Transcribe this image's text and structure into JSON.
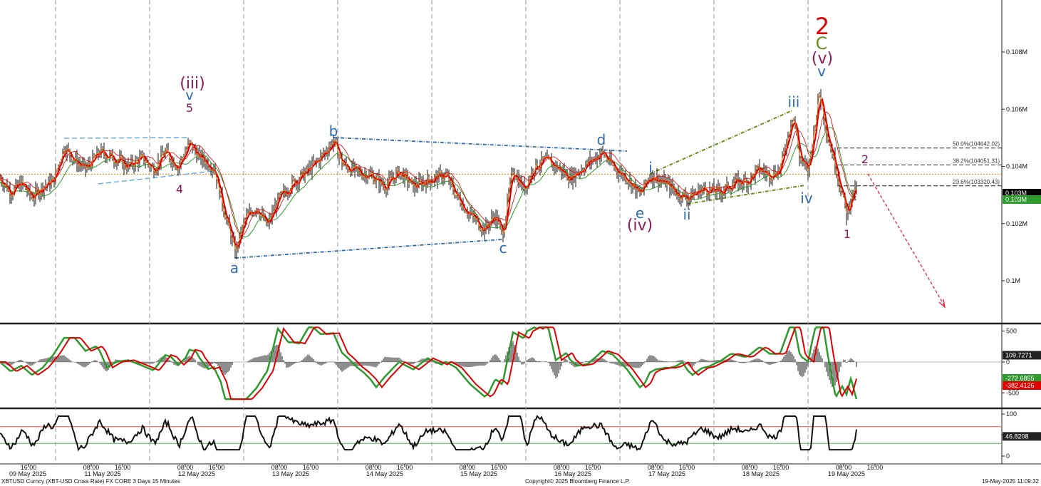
{
  "footer": {
    "left": "XBTUSD Curncy (XBT-USD Cross Rate) FX CORE 3 Days 15 Minutes",
    "center": "Copyright© 2025 Bloomberg Finance L.P.",
    "right": "19-May-2025 11:09:32"
  },
  "colors": {
    "price": "#111111",
    "ma_fast": "#e00000",
    "ma_slow_green": "#2e9a2e",
    "ma_orange": "#ff7a00",
    "blue_trend": "#2e6ab0",
    "green_trend": "#6a8f1a",
    "wave_purple": "#8a1a55",
    "wave_blue": "#2e6ab0",
    "red_arrow": "#e8203a"
  },
  "chart_data": [
    {
      "type": "line",
      "panel": "price",
      "ylim": [
        0.0991,
        0.1102
      ],
      "y_ticks": [
        {
          "v": 0.1,
          "label": "0.1M"
        },
        {
          "v": 0.102,
          "label": "0.102M"
        },
        {
          "v": 0.104,
          "label": "0.104M"
        },
        {
          "v": 0.106,
          "label": "0.106M"
        },
        {
          "v": 0.108,
          "label": "0.108M"
        }
      ],
      "x_time_ticks": [
        "16:00",
        "08:00",
        "16:00",
        "08:00",
        "16:00",
        "08:00",
        "16:00",
        "08:00",
        "16:00",
        "08:00",
        "16:00",
        "08:00",
        "16:00",
        "08:00",
        "16:00",
        "08:00",
        "16:00",
        "08:00",
        "16:00"
      ],
      "x_date_labels": [
        "09 May 2025",
        "11 May 2025",
        "12 May 2025",
        "13 May 2025",
        "14 May 2025",
        "15 May 2025",
        "16 May 2025",
        "17 May 2025",
        "18 May 2025",
        "19 May 2025"
      ],
      "last_price_tags": [
        "0.103M",
        "0.103M"
      ],
      "horizontal_ref": 0.10373,
      "price_path": [
        [
          0,
          0.1036
        ],
        [
          15,
          0.1031
        ],
        [
          30,
          0.1034
        ],
        [
          45,
          0.1029
        ],
        [
          60,
          0.1033
        ],
        [
          75,
          0.1035
        ],
        [
          90,
          0.1047
        ],
        [
          105,
          0.1042
        ],
        [
          120,
          0.1039
        ],
        [
          140,
          0.1045
        ],
        [
          160,
          0.1043
        ],
        [
          180,
          0.104
        ],
        [
          200,
          0.1043
        ],
        [
          215,
          0.1039
        ],
        [
          232,
          0.1045
        ],
        [
          250,
          0.104
        ],
        [
          266,
          0.1048
        ],
        [
          280,
          0.1043
        ],
        [
          300,
          0.104
        ],
        [
          312,
          0.1027
        ],
        [
          330,
          0.101
        ],
        [
          345,
          0.1022
        ],
        [
          360,
          0.1026
        ],
        [
          375,
          0.1019
        ],
        [
          390,
          0.1028
        ],
        [
          410,
          0.1034
        ],
        [
          430,
          0.1038
        ],
        [
          450,
          0.1043
        ],
        [
          468,
          0.1049
        ],
        [
          480,
          0.1041
        ],
        [
          500,
          0.1038
        ],
        [
          520,
          0.1037
        ],
        [
          540,
          0.1033
        ],
        [
          560,
          0.1038
        ],
        [
          580,
          0.1033
        ],
        [
          600,
          0.1035
        ],
        [
          625,
          0.1037
        ],
        [
          640,
          0.103
        ],
        [
          660,
          0.1023
        ],
        [
          680,
          0.1018
        ],
        [
          695,
          0.1023
        ],
        [
          705,
          0.1016
        ],
        [
          720,
          0.1039
        ],
        [
          735,
          0.1032
        ],
        [
          750,
          0.104
        ],
        [
          765,
          0.1042
        ],
        [
          780,
          0.104
        ],
        [
          800,
          0.1036
        ],
        [
          820,
          0.104
        ],
        [
          845,
          0.1045
        ],
        [
          860,
          0.104
        ],
        [
          880,
          0.1036
        ],
        [
          898,
          0.103
        ],
        [
          912,
          0.1037
        ],
        [
          935,
          0.1034
        ],
        [
          948,
          0.1031
        ],
        [
          965,
          0.1029
        ],
        [
          985,
          0.1032
        ],
        [
          1010,
          0.1031
        ],
        [
          1030,
          0.1034
        ],
        [
          1050,
          0.1035
        ],
        [
          1065,
          0.1039
        ],
        [
          1080,
          0.1037
        ],
        [
          1095,
          0.1039
        ],
        [
          1113,
          0.1059
        ],
        [
          1122,
          0.1043
        ],
        [
          1134,
          0.1038
        ],
        [
          1150,
          0.1066
        ],
        [
          1162,
          0.105
        ],
        [
          1175,
          0.1038
        ],
        [
          1188,
          0.1023
        ],
        [
          1195,
          0.103
        ],
        [
          1203,
          0.1032
        ]
      ],
      "trendlines_note": "triangle a-b-c-d-e, ending diagonal i-ii-iii-iv",
      "fib_levels": [
        {
          "label": "50.0%(104642.02)",
          "v": 0.104642
        },
        {
          "label": "38.2%(104051.31)",
          "v": 0.104051
        },
        {
          "label": "23.6%(103320.43)",
          "v": 0.10332
        }
      ],
      "wave_labels": [
        "(iii)",
        "v",
        "5",
        "4",
        "a",
        "b",
        "c",
        "d",
        "e",
        "(iv)",
        "i",
        "ii",
        "iii",
        "iv",
        "2",
        "C",
        "(v)",
        "v",
        "1",
        "2"
      ]
    },
    {
      "type": "line",
      "panel": "oscillator",
      "ylim": [
        -650,
        620
      ],
      "y_ticks": [
        {
          "v": 500,
          "label": "500"
        },
        {
          "v": 0,
          "label": "0"
        },
        {
          "v": -500,
          "label": "-500"
        }
      ],
      "series": [
        {
          "name": "109.7271",
          "last": 109.7271,
          "color": "#444444"
        },
        {
          "name": "-272.6855",
          "last": -272.6855,
          "color": "#2e9a2e"
        },
        {
          "name": "-382.4126",
          "last": -382.4126,
          "color": "#e00000"
        }
      ]
    },
    {
      "type": "line",
      "panel": "rsi",
      "ylim": [
        -8,
        112
      ],
      "y_ticks": [
        {
          "v": 100,
          "label": "100"
        },
        {
          "v": 50,
          "label": "50"
        },
        {
          "v": 0,
          "label": "0"
        }
      ],
      "levels": [
        70,
        30
      ],
      "series": [
        {
          "name": "46.8208",
          "last": 46.8208
        }
      ]
    }
  ]
}
